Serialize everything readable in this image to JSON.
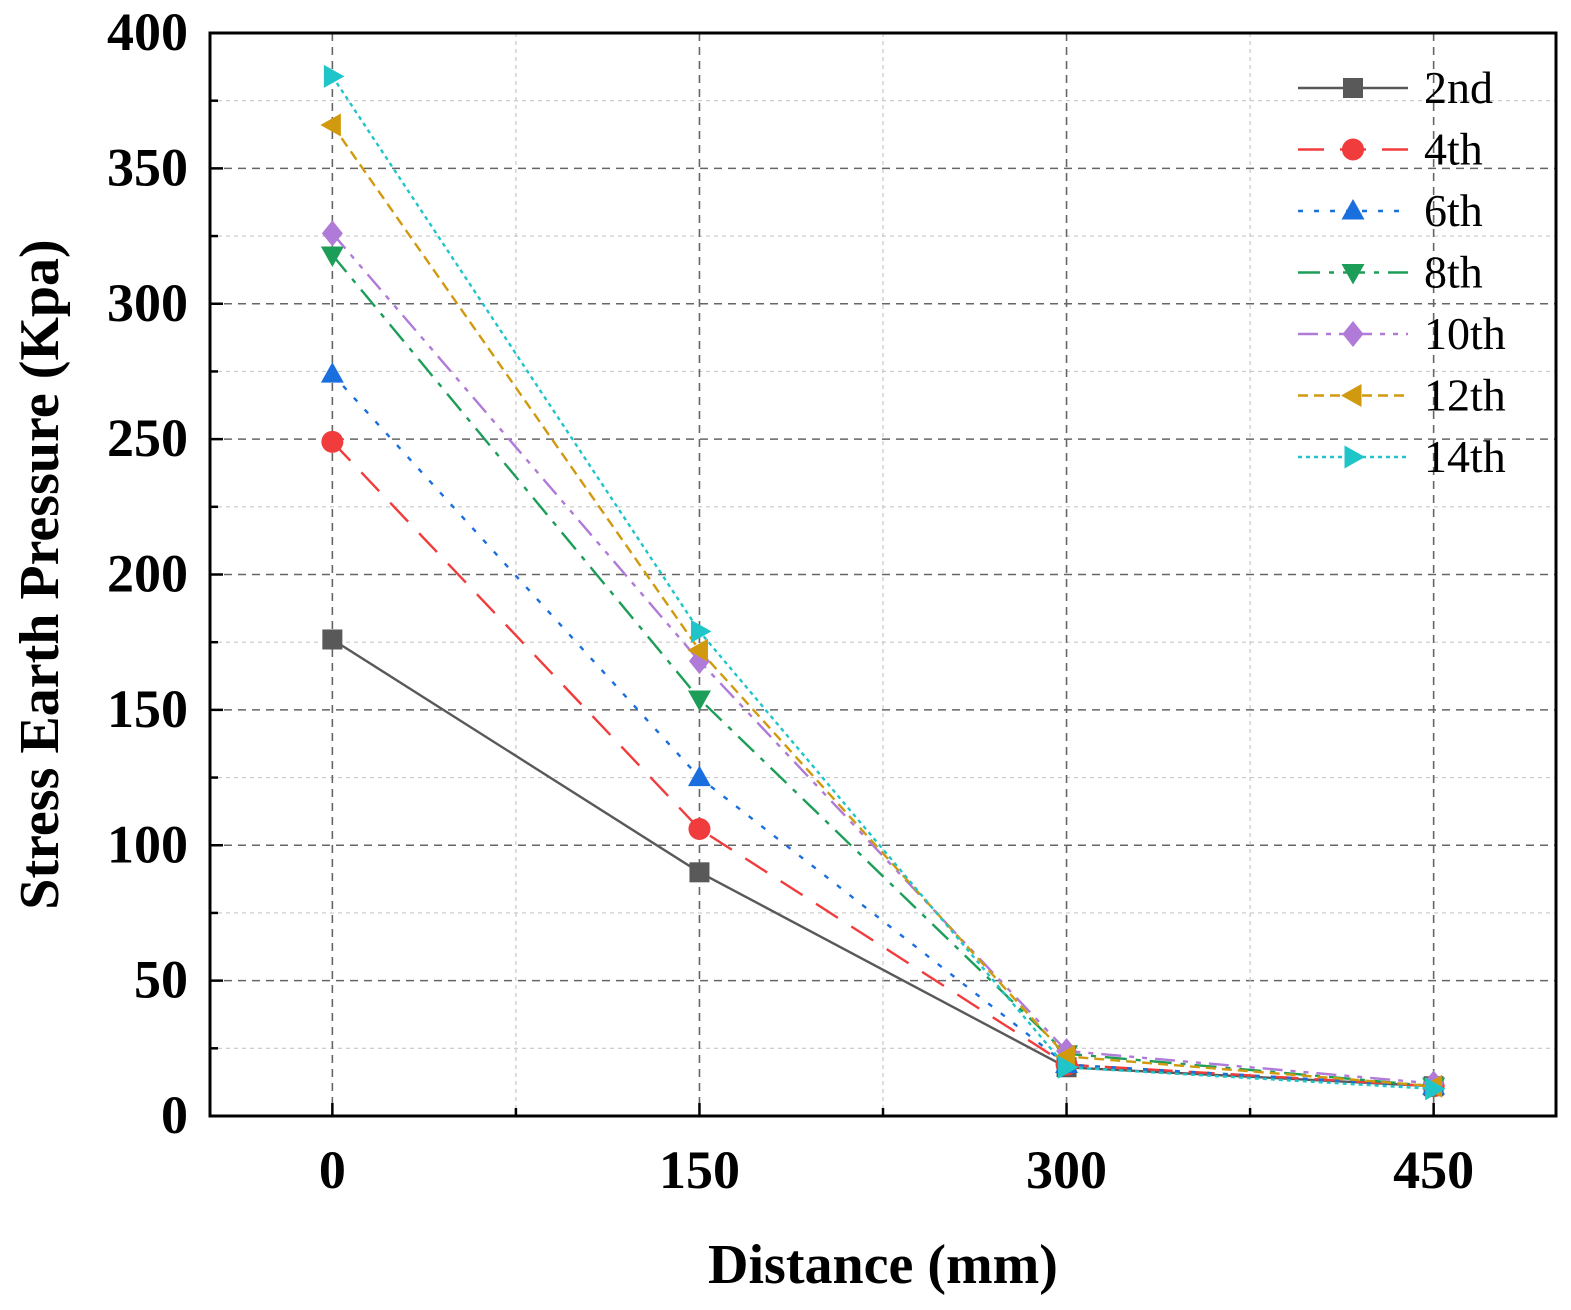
{
  "chart_data": {
    "type": "line",
    "title": "",
    "xlabel": "Distance (mm)",
    "ylabel": "Stress Earth Pressure (Kpa)",
    "x": [
      0,
      150,
      300,
      450
    ],
    "xlim": [
      -50,
      500
    ],
    "ylim": [
      0,
      400
    ],
    "xticks": [
      0,
      150,
      300,
      450
    ],
    "yticks": [
      0,
      50,
      100,
      150,
      200,
      250,
      300,
      350,
      400
    ],
    "grid": true,
    "legend_position": "top-right",
    "series": [
      {
        "name": "2nd",
        "values": [
          176,
          90,
          18,
          11
        ],
        "color": "#595959",
        "marker": "square",
        "dash": ""
      },
      {
        "name": "4th",
        "values": [
          249,
          106,
          19,
          11
        ],
        "color": "#f03c3c",
        "marker": "circle",
        "dash": "26 16"
      },
      {
        "name": "6th",
        "values": [
          274,
          125,
          19,
          11
        ],
        "color": "#1a6fdf",
        "marker": "triangle-up",
        "dash": "5 11"
      },
      {
        "name": "8th",
        "values": [
          318,
          154,
          23,
          11
        ],
        "color": "#1d9e58",
        "marker": "triangle-down",
        "dash": "22 9 5 9"
      },
      {
        "name": "10th",
        "values": [
          326,
          168,
          24,
          12
        ],
        "color": "#b07ad8",
        "marker": "diamond",
        "dash": "20 8 5 8 5 8"
      },
      {
        "name": "12th",
        "values": [
          366,
          172,
          22,
          11
        ],
        "color": "#d19a0e",
        "marker": "triangle-left",
        "dash": "10 6"
      },
      {
        "name": "14th",
        "values": [
          384,
          179,
          18,
          10
        ],
        "color": "#1fc5c9",
        "marker": "triangle-right",
        "dash": "4 4"
      }
    ]
  }
}
